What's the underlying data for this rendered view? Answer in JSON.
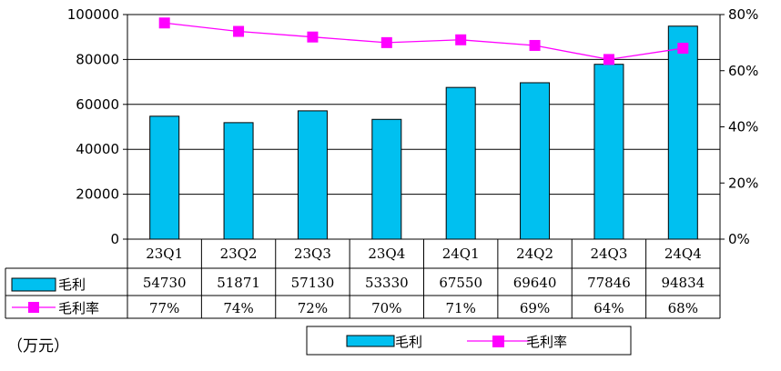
{
  "chart_data": {
    "type": "bar",
    "categories": [
      "23Q1",
      "23Q2",
      "23Q3",
      "23Q4",
      "24Q1",
      "24Q2",
      "24Q3",
      "24Q4"
    ],
    "series": [
      {
        "name": "毛利",
        "kind": "bar",
        "axis": "left",
        "color": "#00c0f0",
        "values": [
          54730,
          51871,
          57130,
          53330,
          67550,
          69640,
          77846,
          94834
        ],
        "labels": [
          "54730",
          "51871",
          "57130",
          "53330",
          "67550",
          "69640",
          "77846",
          "94834"
        ]
      },
      {
        "name": "毛利率",
        "kind": "line",
        "axis": "right",
        "color": "#ff00ff",
        "values": [
          77,
          74,
          72,
          70,
          71,
          69,
          64,
          68
        ],
        "labels": [
          "77%",
          "74%",
          "72%",
          "70%",
          "71%",
          "69%",
          "64%",
          "68%"
        ]
      }
    ],
    "ylim": [
      0,
      100000
    ],
    "y_ticks": [
      "0",
      "20000",
      "40000",
      "60000",
      "80000",
      "100000"
    ],
    "y2lim": [
      0,
      80
    ],
    "y2_ticks": [
      "0%",
      "20%",
      "40%",
      "60%",
      "80%"
    ],
    "grid": true,
    "data_table": true,
    "legend_position": "bottom",
    "unit_note": "（万元）"
  }
}
